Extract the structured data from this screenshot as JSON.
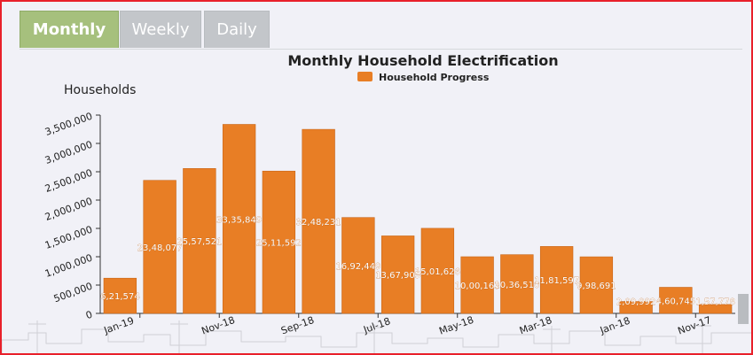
{
  "tabs": [
    {
      "label": "Monthly",
      "active": true
    },
    {
      "label": "Weekly",
      "active": false
    },
    {
      "label": "Daily",
      "active": false
    }
  ],
  "colors": {
    "bar": "#e87e25",
    "tab_active": "#a6c07d",
    "tab_inactive": "#c3c6ca",
    "frame_border": "#e8202a"
  },
  "chart_data": {
    "type": "bar",
    "title": "Monthly Household Electrification",
    "ylabel": "Households",
    "legend": [
      "Household Progress"
    ],
    "legend_position": "top-center",
    "grid": false,
    "ylim": [
      0,
      3500000
    ],
    "yticks": [
      "0",
      "500,000",
      "1,000,000",
      "1,500,000",
      "2,000,000",
      "2,500,000",
      "3,000,000",
      "3,500,000"
    ],
    "xtick_labels": [
      "Jan-19",
      "Nov-18",
      "Sep-18",
      "Jul-18",
      "May-18",
      "Mar-18",
      "Jan-18",
      "Nov-17"
    ],
    "series": [
      {
        "name": "Household Progress",
        "values": [
          621574,
          2348077,
          2557521,
          3335849,
          2511592,
          3248231,
          1692449,
          1367905,
          1501626,
          1000163,
          1036510,
          1181597,
          998691,
          209992,
          460745,
          157778
        ],
        "labels": [
          "6,21,574",
          "23,48,077",
          "25,57,521",
          "33,35,849",
          "25,11,592",
          "32,48,231",
          "16,92,449",
          "13,67,905",
          "15,01,626",
          "10,00,163",
          "10,36,510",
          "11,81,597",
          "9,98,691",
          "2,09,992",
          "4,60,745",
          "1,57,778"
        ]
      }
    ]
  }
}
